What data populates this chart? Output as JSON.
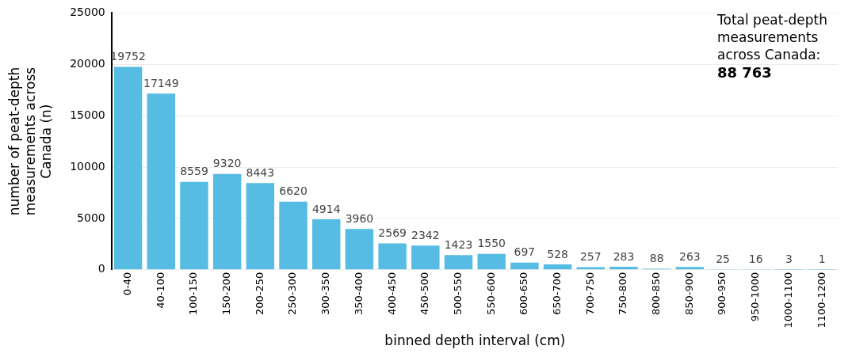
{
  "chart_data": {
    "type": "bar",
    "xlabel": "binned depth interval (cm)",
    "ylabel": "number of peat-depth measurements across Canada (n)",
    "categories": [
      "0-40",
      "40-100",
      "100-150",
      "150-200",
      "200-250",
      "250-300",
      "300-350",
      "350-400",
      "400-450",
      "450-500",
      "500-550",
      "550-600",
      "600-650",
      "650-700",
      "700-750",
      "750-800",
      "800-850",
      "850-900",
      "900-950",
      "950-1000",
      "1000-1100",
      "1100-1200"
    ],
    "values": [
      19752,
      17149,
      8559,
      9320,
      8443,
      6620,
      4914,
      3960,
      2569,
      2342,
      1423,
      1550,
      697,
      528,
      257,
      283,
      88,
      263,
      25,
      16,
      3,
      1
    ],
    "color": "#56bce3",
    "ylim": [
      0,
      25000
    ],
    "yticks": [
      0,
      5000,
      10000,
      15000,
      20000,
      25000
    ],
    "grid": "y",
    "data_labels": true,
    "legend": false,
    "annotations": [
      "Total peat-depth measurements across Canada:",
      "88 763"
    ]
  }
}
